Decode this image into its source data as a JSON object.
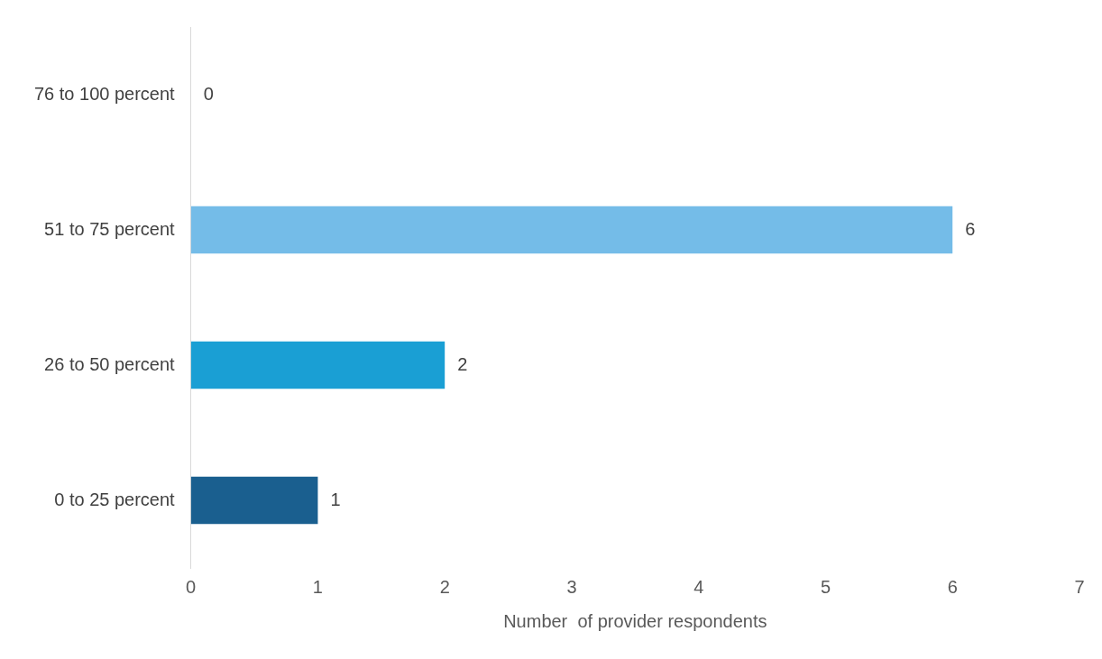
{
  "chart_data": {
    "type": "bar",
    "orientation": "horizontal",
    "xlabel": "Number  of provider respondents",
    "categories": [
      "76 to 100 percent",
      "51 to 75 percent",
      "26 to 50 percent",
      "0 to 25 percent"
    ],
    "values": [
      0,
      6,
      2,
      1
    ],
    "colors": [
      "#9fd0f0",
      "#74bce8",
      "#1a9fd4",
      "#1a5f8f"
    ],
    "xlim": [
      0,
      7
    ],
    "xticks": [
      0,
      1,
      2,
      3,
      4,
      5,
      6,
      7
    ],
    "grid": false,
    "legend": false,
    "data_labels": true
  }
}
